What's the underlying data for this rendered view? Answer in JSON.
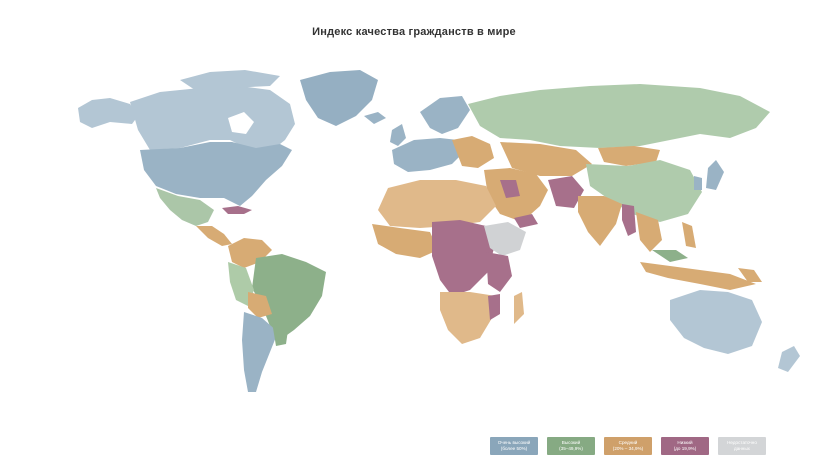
{
  "title": "Индекс качества гражданств в мире",
  "colors": {
    "very_high": "#96b0c2",
    "high": "#8cae89",
    "medium": "#d3a871",
    "low": "#a46f8a",
    "no_data": "#d0d2d4",
    "land_light_blue": "#b0c4d2",
    "land_light_green": "#a9c4a6",
    "land_light_orange": "#e2bc8c"
  },
  "legend": [
    {
      "line1": "Очень высокий",
      "line2": "(более 50%)",
      "color": "#8aa6ba"
    },
    {
      "line1": "Высокий",
      "line2": "(35–49,9%)",
      "color": "#86aa83"
    },
    {
      "line1": "Средний",
      "line2": "(20% – 34,9%)",
      "color": "#cfa06a"
    },
    {
      "line1": "Низкий",
      "line2": "(до 19,9%)",
      "color": "#a06884"
    },
    {
      "line1": "Недостаточно",
      "line2": "данных",
      "color": "#d3d5d7"
    }
  ]
}
